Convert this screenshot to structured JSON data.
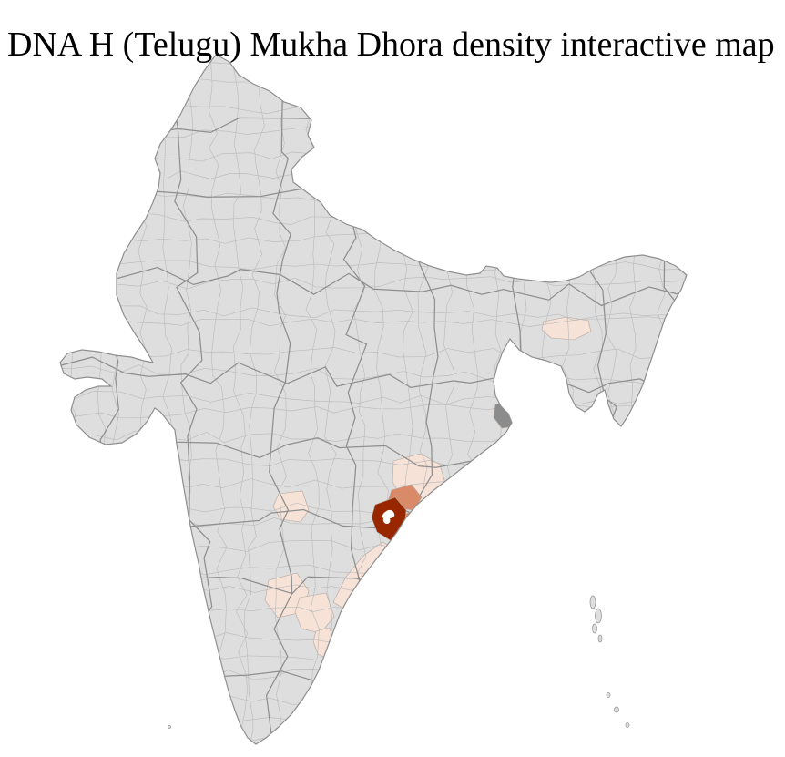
{
  "title": "DNA H (Telugu) Mukha Dhora density interactive map",
  "map": {
    "background": "#ffffff",
    "land_fill": "#dedede",
    "district_border_color": "#bcbcbc",
    "state_border_color": "#8f8f8f",
    "outline_color": "#8f8f8f",
    "marker_color": "#ffffff",
    "density_colors": {
      "high": "#982700",
      "medium": "#d98a68",
      "low": "#f6e2d6",
      "gray": "#8c8c8c"
    }
  }
}
